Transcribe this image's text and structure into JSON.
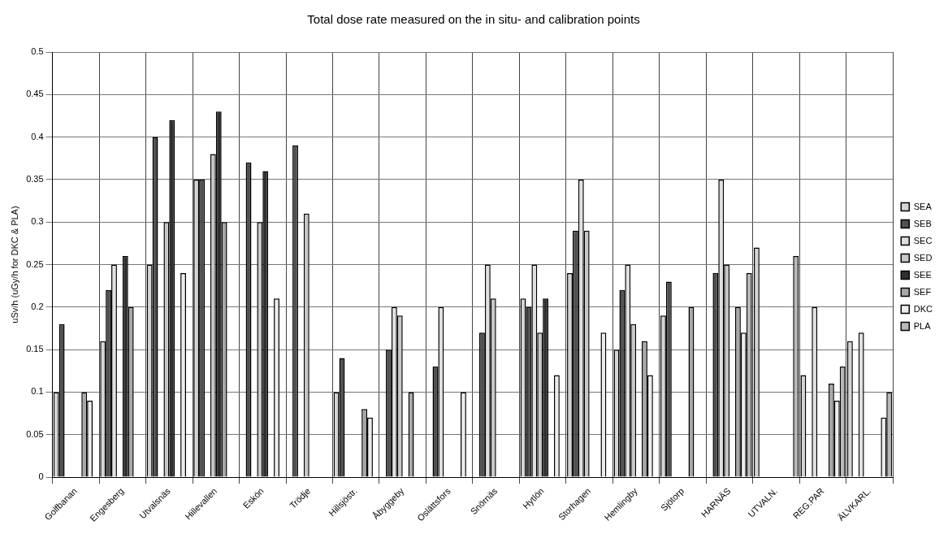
{
  "chart_data": {
    "type": "bar",
    "title": "Total dose rate measured on the in situ- and calibration points",
    "ylabel": "uSv/h (uGy/h for DKC & PLA)",
    "categories": [
      "Golfbanan",
      "Engesberg",
      "Utvalsnäs",
      "Hillevallen",
      "Eskön",
      "Trödje",
      "Hillsjöstr.",
      "Åbyggeby",
      "Oslättsfors",
      "Snörnäs",
      "Hytlön",
      "Storhagen",
      "Hemlingby",
      "Sjötorp",
      "HARNÄS",
      "UTVALN.",
      "REG.PAR",
      "ÄLVKARL."
    ],
    "series": [
      {
        "name": "SEA",
        "color": "#d4d4d4",
        "values": [
          0.1,
          0.16,
          0.25,
          0.35,
          null,
          null,
          0.1,
          null,
          null,
          null,
          0.21,
          0.24,
          0.15,
          0.19,
          null,
          0.27,
          0.12,
          0.16
        ]
      },
      {
        "name": "SEB",
        "color": "#505050",
        "values": [
          0.18,
          0.22,
          0.4,
          0.35,
          0.37,
          0.39,
          0.14,
          0.15,
          0.13,
          0.17,
          0.2,
          0.29,
          0.22,
          0.23,
          0.24,
          null,
          null,
          null
        ]
      },
      {
        "name": "SEC",
        "color": "#e0e0e0",
        "values": [
          null,
          0.25,
          null,
          null,
          null,
          null,
          null,
          0.2,
          0.2,
          0.25,
          0.25,
          0.35,
          0.25,
          null,
          0.35,
          null,
          0.2,
          0.17
        ]
      },
      {
        "name": "SED",
        "color": "#c8c8c8",
        "values": [
          null,
          null,
          0.3,
          0.38,
          0.3,
          0.31,
          null,
          0.19,
          null,
          0.21,
          0.17,
          0.29,
          0.18,
          null,
          0.25,
          null,
          null,
          null
        ]
      },
      {
        "name": "SEE",
        "color": "#303030",
        "values": [
          null,
          0.26,
          0.42,
          0.43,
          0.36,
          null,
          null,
          null,
          null,
          null,
          0.21,
          null,
          null,
          null,
          null,
          null,
          null,
          null
        ]
      },
      {
        "name": "SEF",
        "color": "#a8a8a8",
        "values": [
          0.1,
          0.2,
          null,
          0.3,
          null,
          null,
          0.08,
          0.1,
          null,
          null,
          null,
          null,
          0.16,
          0.2,
          0.2,
          null,
          0.11,
          null
        ]
      },
      {
        "name": "DKC",
        "color": "#ececec",
        "values": [
          0.09,
          null,
          0.24,
          null,
          0.21,
          null,
          0.07,
          null,
          0.1,
          null,
          0.12,
          0.17,
          0.12,
          null,
          0.17,
          null,
          0.09,
          0.07
        ]
      },
      {
        "name": "PLA",
        "color": "#b8b8b8",
        "values": [
          null,
          null,
          null,
          null,
          null,
          null,
          null,
          null,
          null,
          null,
          null,
          null,
          null,
          null,
          0.24,
          0.26,
          0.13,
          0.1
        ]
      }
    ],
    "ylim": [
      0,
      0.5
    ],
    "yticks": [
      0,
      0.05,
      0.1,
      0.15,
      0.2,
      0.25,
      0.3,
      0.35,
      0.4,
      0.45,
      0.5
    ],
    "grid": true,
    "legend": "right"
  }
}
